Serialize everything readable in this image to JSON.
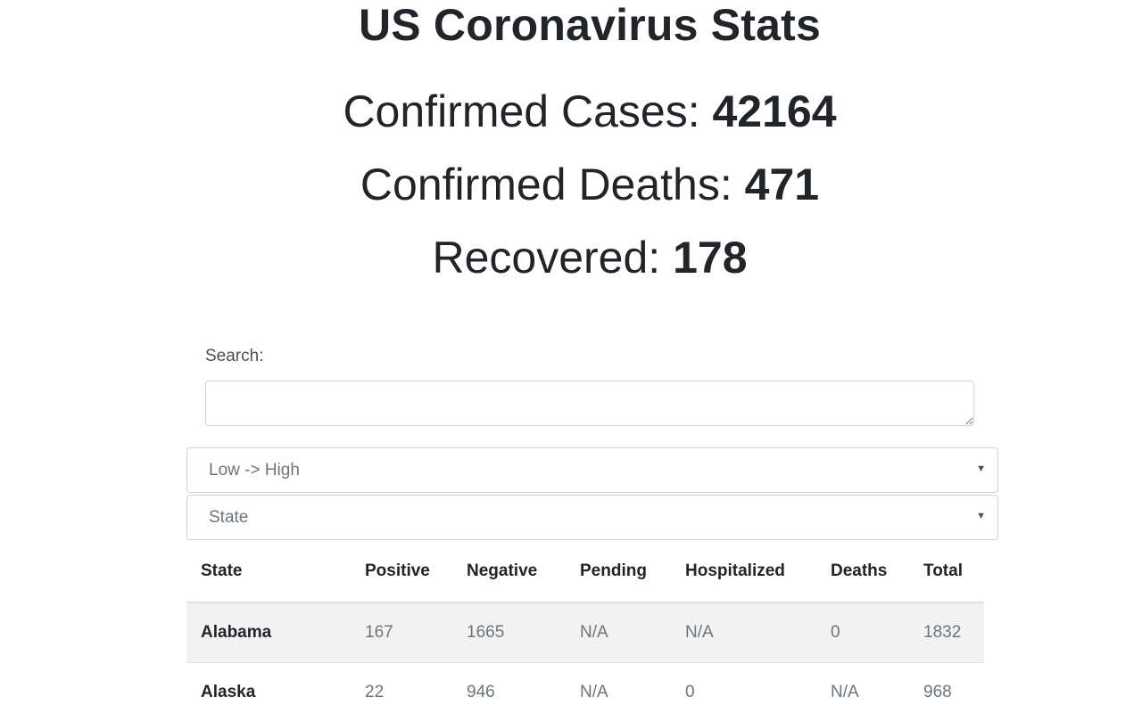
{
  "header": {
    "title": "US Coronavirus Stats"
  },
  "stats": {
    "cases_label": "Confirmed Cases: ",
    "cases_value": "42164",
    "deaths_label": "Confirmed Deaths: ",
    "deaths_value": "471",
    "recovered_label": "Recovered: ",
    "recovered_value": "178"
  },
  "search": {
    "label": "Search:",
    "value": ""
  },
  "sort_order": {
    "selected": "Low -> High"
  },
  "sort_field": {
    "selected": "State"
  },
  "table": {
    "columns": [
      "State",
      "Positive",
      "Negative",
      "Pending",
      "Hospitalized",
      "Deaths",
      "Total"
    ],
    "rows": [
      [
        "Alabama",
        "167",
        "1665",
        "N/A",
        "N/A",
        "0",
        "1832"
      ],
      [
        "Alaska",
        "22",
        "946",
        "N/A",
        "0",
        "N/A",
        "968"
      ]
    ]
  },
  "icons": {
    "dropdown": "caret-down-icon"
  }
}
